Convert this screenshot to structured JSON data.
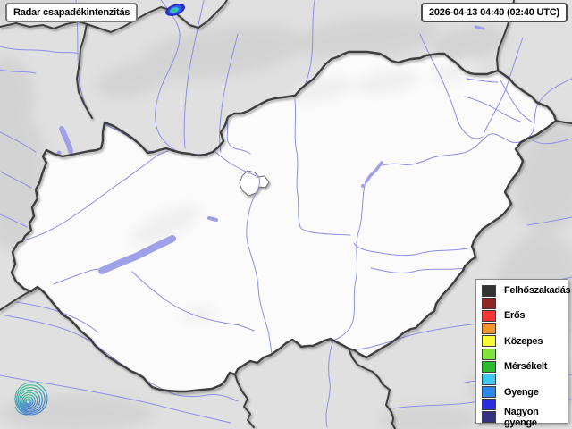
{
  "header": {
    "title": "Radar csapadékintenzitás",
    "timestamp": "2026-04-13 04:40 (02:40 UTC)"
  },
  "legend": {
    "items": [
      {
        "label": "Felhőszakadás",
        "color": "#333333"
      },
      {
        "label": "",
        "color": "#8f2525"
      },
      {
        "label": "Erős",
        "color": "#f93535"
      },
      {
        "label": "",
        "color": "#f9962e"
      },
      {
        "label": "Közepes",
        "color": "#f9f935"
      },
      {
        "label": "",
        "color": "#80e43c"
      },
      {
        "label": "Mérsékelt",
        "color": "#2cbb2c"
      },
      {
        "label": "",
        "color": "#41c8f2"
      },
      {
        "label": "Gyenge",
        "color": "#2e87e8"
      },
      {
        "label": "",
        "color": "#2a2ae0"
      },
      {
        "label": "Nagyon gyenge",
        "color": "#32327f"
      }
    ]
  },
  "colors": {
    "map-outside": "#e0e0e0",
    "map-hungary": "#fbfbfb",
    "border": "#3e3e3e",
    "river": "#8f8fe8",
    "lake": "#a0a0e8",
    "shade-outside": "#c9c9c9",
    "shade-inside": "#ececec"
  },
  "radar_echo": {
    "colors": [
      "#2b2bc4",
      "#2e62e8",
      "#38bcdc",
      "#40be72"
    ]
  },
  "logo": {
    "colors": [
      "#44c284",
      "#2fa3b8",
      "#3b7cc9"
    ]
  }
}
